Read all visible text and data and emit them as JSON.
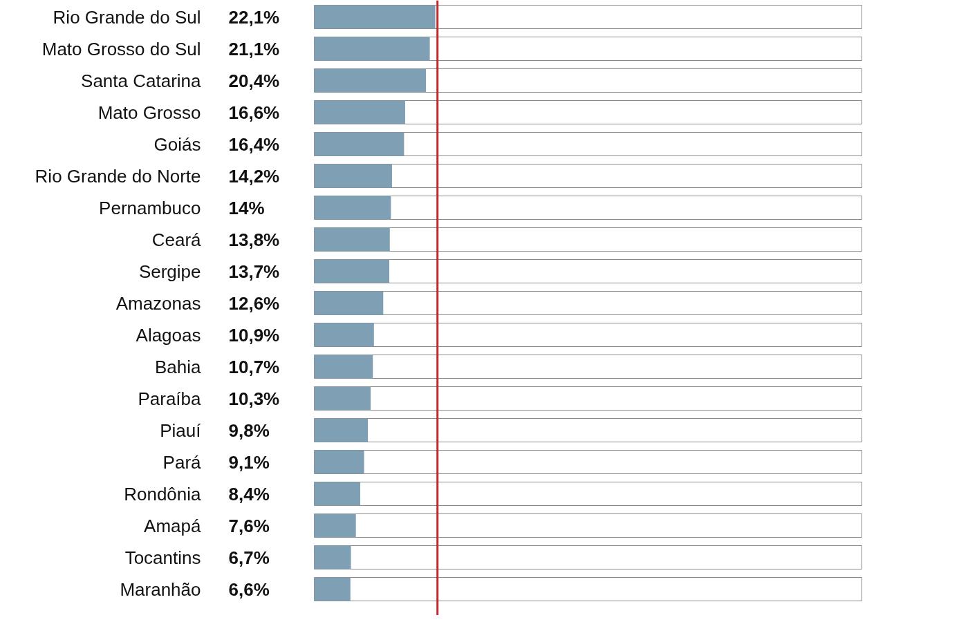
{
  "chart_data": {
    "type": "bar",
    "orientation": "horizontal",
    "categories": [
      "Rio Grande do Sul",
      "Mato Grosso do Sul",
      "Santa Catarina",
      "Mato Grosso",
      "Goiás",
      "Rio Grande do Norte",
      "Pernambuco",
      "Ceará",
      "Sergipe",
      "Amazonas",
      "Alagoas",
      "Bahia",
      "Paraíba",
      "Piauí",
      "Pará",
      "Rondônia",
      "Amapá",
      "Tocantins",
      "Maranhão"
    ],
    "values": [
      22.1,
      21.1,
      20.4,
      16.6,
      16.4,
      14.2,
      14,
      13.8,
      13.7,
      12.6,
      10.9,
      10.7,
      10.3,
      9.8,
      9.1,
      8.4,
      7.6,
      6.7,
      6.6
    ],
    "value_labels": [
      "22,1%",
      "21,1%",
      "20,4%",
      "16,6%",
      "16,4%",
      "14,2%",
      "14%",
      "13,8%",
      "13,7%",
      "12,6%",
      "10,9%",
      "10,7%",
      "10,3%",
      "9,8%",
      "9,1%",
      "8,4%",
      "7,6%",
      "6,7%",
      "6,6%"
    ],
    "color": "#7f9fb5",
    "xlim": [
      0,
      100
    ],
    "tick_labels": false,
    "grid": false,
    "ref_lines": [
      {
        "axis": "x",
        "value": 22.5,
        "color": "#c0292e"
      }
    ]
  }
}
